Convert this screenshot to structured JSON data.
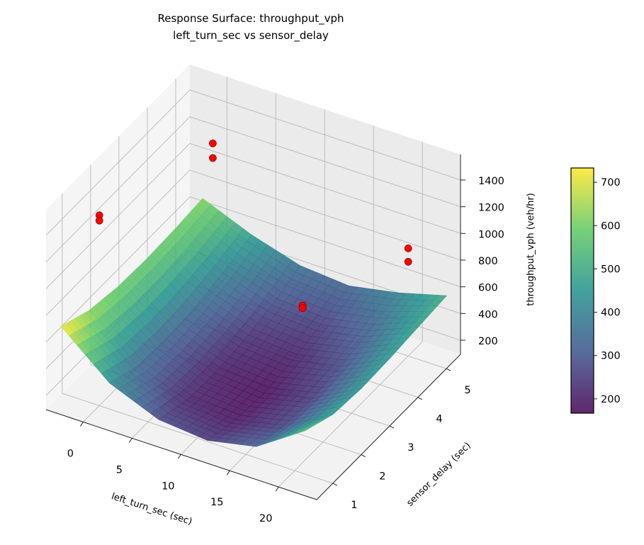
{
  "chart_data": {
    "type": "surface3d",
    "title": "Response Surface: throughput_vph",
    "subtitle": "left_turn_sec vs sensor_delay",
    "xlabel": "left_turn_sec (sec)",
    "ylabel": "sensor_delay (sec)",
    "zlabel": "throughput_vph (veh/hr)",
    "xlim": [
      -3.8,
      23.9
    ],
    "ylim": [
      0.43,
      5.5
    ],
    "zlim": [
      94,
      1591
    ],
    "x_ticks": [
      0,
      5,
      10,
      15,
      20
    ],
    "y_ticks": [
      1,
      2,
      3,
      4,
      5
    ],
    "z_ticks": [
      200,
      400,
      600,
      800,
      1000,
      1200,
      1400
    ],
    "grid": true,
    "colormap": "viridis",
    "surface": {
      "x": [
        -2.5,
        2.5,
        7.5,
        12.5,
        17.5,
        22.5
      ],
      "y": [
        0.5,
        1.5,
        2.5,
        3.5,
        4.5,
        5.5
      ],
      "z": [
        [
          735,
          430,
          280,
          245,
          320,
          560
        ],
        [
          640,
          345,
          210,
          185,
          265,
          470
        ],
        [
          600,
          330,
          200,
          170,
          255,
          450
        ],
        [
          590,
          350,
          225,
          200,
          280,
          460
        ],
        [
          600,
          400,
          280,
          255,
          330,
          480
        ],
        [
          620,
          470,
          360,
          330,
          400,
          500
        ]
      ]
    },
    "scatter": {
      "color": "#ff0000",
      "points": [
        {
          "x": 0,
          "y": 1,
          "z": 1520
        },
        {
          "x": 0,
          "y": 1,
          "z": 1480
        },
        {
          "x": 0,
          "y": 5,
          "z": 1200
        },
        {
          "x": 0,
          "y": 5,
          "z": 1090
        },
        {
          "x": 15,
          "y": 3,
          "z": 780
        },
        {
          "x": 15,
          "y": 3,
          "z": 760
        },
        {
          "x": 20,
          "y": 5,
          "z": 900
        },
        {
          "x": 20,
          "y": 5,
          "z": 800
        }
      ]
    },
    "colorbar": {
      "range": [
        167,
        733
      ],
      "ticks": [
        200,
        300,
        400,
        500,
        600,
        700
      ]
    }
  }
}
